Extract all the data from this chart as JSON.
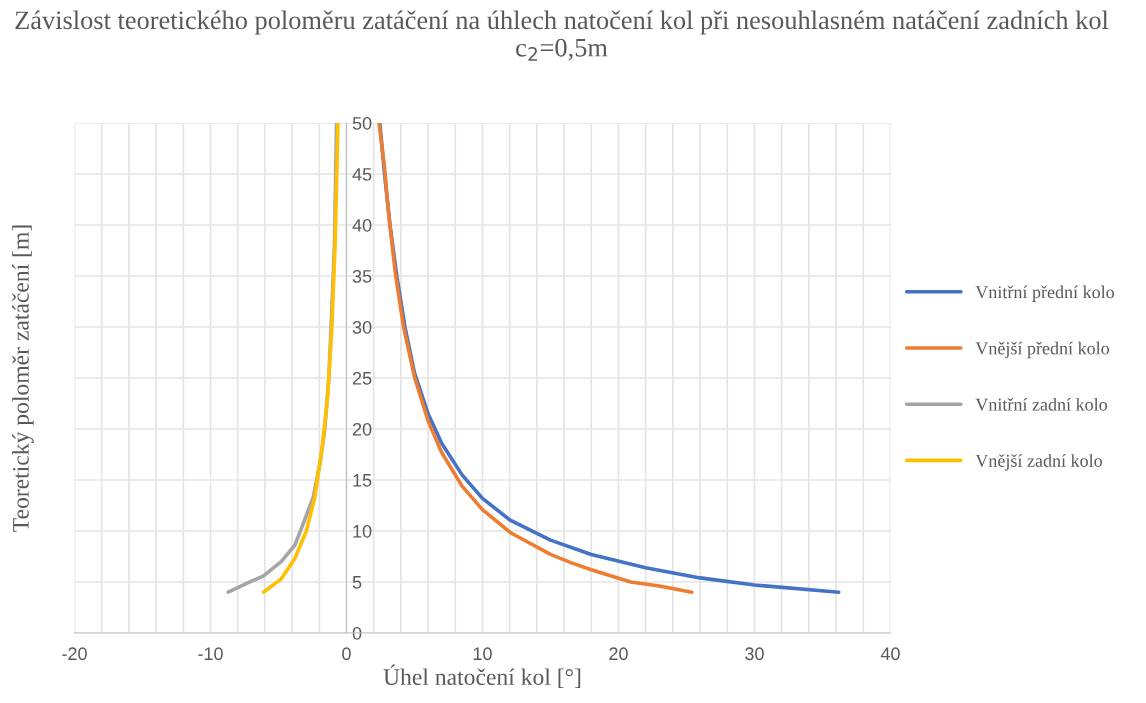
{
  "chart_data": {
    "type": "line",
    "title": "Závislost teoretického poloměru zatáčení na úhlech natočení kol při nesouhlasném natáčení zadních kol c$_{2}$=0,5m",
    "xlabel": "Úhel natočení kol [°]",
    "ylabel": "Teoretický poloměr zatáčení [m]",
    "series": [
      {
        "name": "Vnitřní přední kolo",
        "color": "#4472c4",
        "x": [
          2.45,
          2.8,
          3.2,
          3.7,
          4.3,
          5,
          6,
          7,
          8.5,
          10,
          12,
          15,
          18,
          22,
          26,
          30,
          36.2
        ],
        "values": [
          50,
          45,
          40,
          35,
          30,
          25.5,
          21.5,
          18.6,
          15.5,
          13.2,
          11.1,
          9.1,
          7.7,
          6.4,
          5.4,
          4.7,
          4
        ]
      },
      {
        "name": "Vnější přední kolo",
        "color": "#ed7d31",
        "x": [
          2.4,
          2.8,
          3.1,
          3.6,
          4.2,
          5,
          6,
          7,
          8.5,
          10,
          12.1,
          15,
          16.5,
          18,
          20.9,
          23,
          25.4
        ],
        "values": [
          50,
          45.6,
          41.1,
          35.2,
          30,
          25.1,
          20.8,
          17.7,
          14.4,
          12.1,
          9.8,
          7.7,
          6.9,
          6.2,
          5,
          4.6,
          4
        ]
      },
      {
        "name": "Vnitřní zadní kolo",
        "color": "#a5a5a5",
        "x": [
          -8.7,
          -7.1,
          -6.1,
          -4.8,
          -3.8,
          -3.1,
          -2.45,
          -1.95,
          -1.6,
          -1.3,
          -1.08,
          -0.88,
          -0.73
        ],
        "values": [
          4,
          5,
          5.6,
          7,
          8.6,
          11,
          13.3,
          16.6,
          19.9,
          24.9,
          31.6,
          38.2,
          50
        ]
      },
      {
        "name": "Vnější zadní kolo",
        "color": "#ffc000",
        "x": [
          -6.1,
          -4.8,
          -3.8,
          -2.95,
          -2.33,
          -1.78,
          -1.38,
          -1.08,
          -0.83,
          -0.63
        ],
        "values": [
          4,
          5.3,
          7.3,
          10,
          13.3,
          18.3,
          23.3,
          29.9,
          38.2,
          50
        ]
      }
    ],
    "xlim": [
      -20,
      40
    ],
    "xticks": [
      -20,
      {
        "value": -18,
        "label": null
      },
      {
        "value": -16,
        "label": null
      },
      {
        "value": -14,
        "label": null
      },
      {
        "value": -12,
        "label": null
      },
      -10,
      {
        "value": -8,
        "label": null
      },
      {
        "value": -6,
        "label": null
      },
      {
        "value": -4,
        "label": null
      },
      {
        "value": -2,
        "label": null
      },
      0,
      {
        "value": 2,
        "label": null
      },
      {
        "value": 4,
        "label": null
      },
      {
        "value": 6,
        "label": null
      },
      {
        "value": 8,
        "label": null
      },
      10,
      {
        "value": 12,
        "label": null
      },
      {
        "value": 14,
        "label": null
      },
      {
        "value": 16,
        "label": null
      },
      {
        "value": 18,
        "label": null
      },
      20,
      {
        "value": 22,
        "label": null
      },
      {
        "value": 24,
        "label": null
      },
      {
        "value": 26,
        "label": null
      },
      {
        "value": 28,
        "label": null
      },
      30,
      {
        "value": 32,
        "label": null
      },
      {
        "value": 34,
        "label": null
      },
      {
        "value": 36,
        "label": null
      },
      {
        "value": 38,
        "label": null
      },
      40
    ],
    "ylim": [
      0,
      50
    ],
    "yticks": [
      0,
      5,
      10,
      15,
      20,
      25,
      30,
      35,
      40,
      45,
      50
    ],
    "grid": true,
    "legend": "right",
    "marker": "none",
    "line_style": "solid"
  }
}
